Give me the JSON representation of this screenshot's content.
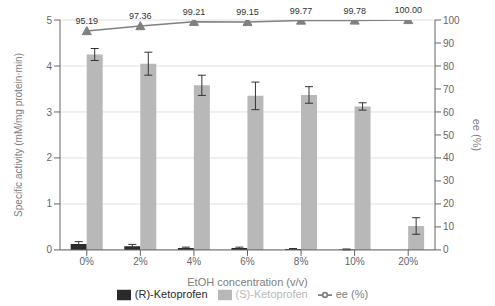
{
  "chart_data": {
    "type": "bar",
    "categories": [
      "0%",
      "2%",
      "4%",
      "6%",
      "8%",
      "10%",
      "20%"
    ],
    "series": [
      {
        "name": "(R)-Ketoprofen",
        "color": "#2a2a2a",
        "values": [
          0.13,
          0.08,
          0.04,
          0.04,
          0.02,
          0.01,
          0.0
        ],
        "errors": [
          0.05,
          0.04,
          0.02,
          0.02,
          0.01,
          0.01,
          0.0
        ]
      },
      {
        "name": "(S)-Ketoprofen",
        "color": "#b8b8b8",
        "values": [
          4.25,
          4.05,
          3.58,
          3.35,
          3.37,
          3.12,
          0.52
        ],
        "errors": [
          0.13,
          0.25,
          0.22,
          0.3,
          0.18,
          0.08,
          0.18
        ]
      },
      {
        "name": "ee (%)",
        "type": "line",
        "axis": "y2",
        "color": "#808080",
        "marker": "triangle",
        "data_labels": true,
        "values": [
          95.19,
          97.36,
          99.21,
          99.15,
          99.77,
          99.78,
          100.0
        ],
        "value_labels": [
          "95.19",
          "97.36",
          "99.21",
          "99.15",
          "99.77",
          "99.78",
          "100.00"
        ]
      }
    ],
    "xlabel": "EtOH concentration (v/v)",
    "ylabel": "Specific activity (mM/mg protein·min)",
    "y2label": "ee (%)",
    "ylim": [
      0,
      5
    ],
    "yticks": [
      0,
      1,
      2,
      3,
      4,
      5
    ],
    "y2lim": [
      0,
      100
    ],
    "y2ticks": [
      0,
      10,
      20,
      30,
      40,
      50,
      60,
      70,
      80,
      90,
      100
    ],
    "grid": true,
    "legend": "bottom"
  }
}
